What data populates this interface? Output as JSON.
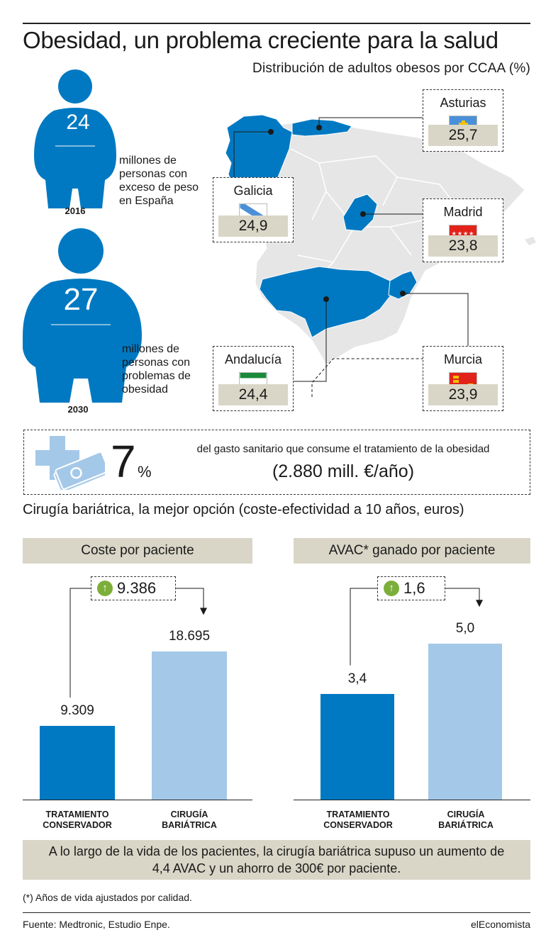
{
  "title": "Obesidad, un problema creciente para la salud",
  "map_subtitle": "Distribución de adultos obesos por CCAA (%)",
  "figures": [
    {
      "number": "24",
      "year": "2016",
      "text": [
        "millones de",
        "personas con",
        "exceso de peso",
        "en España"
      ]
    },
    {
      "number": "27",
      "year": "2030",
      "text": [
        "millones de",
        "personas con",
        "problemas de",
        "obesidad"
      ]
    }
  ],
  "regions": {
    "asturias": {
      "name": "Asturias",
      "value": "25,7"
    },
    "galicia": {
      "name": "Galicia",
      "value": "24,9"
    },
    "madrid": {
      "name": "Madrid",
      "value": "23,8"
    },
    "andalucia": {
      "name": "Andalucía",
      "value": "24,4"
    },
    "murcia": {
      "name": "Murcia",
      "value": "23,9"
    }
  },
  "stat": {
    "number": "7",
    "unit": "%",
    "line1": "del gasto sanitario que consume el tratamiento de la obesidad",
    "line2": "(2.880 mill. €/año)"
  },
  "section_title": "Cirugía bariátrica, la mejor opción (coste-efectividad a 10 años, euros)",
  "colors": {
    "dark_blue": "#0079c2",
    "light_blue": "#a4c8e8",
    "beige": "#d9d6c7",
    "map_grey": "#e6e6e6",
    "arrow_green": "#7cae3a"
  },
  "chart_data": [
    {
      "type": "bar",
      "title": "Coste por paciente",
      "categories": [
        "TRATAMIENTO CONSERVADOR",
        "CIRUGÍA BARIÁTRICA"
      ],
      "category_lines": [
        [
          "TRATAMIENTO",
          "CONSERVADOR"
        ],
        [
          "CIRUGÍA",
          "BARIÁTRICA"
        ]
      ],
      "values": [
        9309,
        18695
      ],
      "value_labels": [
        "9.309",
        "18.695"
      ],
      "difference_label": "9.386",
      "ylim": [
        0,
        26000
      ]
    },
    {
      "type": "bar",
      "title": "AVAC* ganado por paciente",
      "categories": [
        "TRATAMIENTO CONSERVADOR",
        "CIRUGÍA BARIÁTRICA"
      ],
      "category_lines": [
        [
          "TRATAMIENTO",
          "CONSERVADOR"
        ],
        [
          "CIRUGÍA",
          "BARIÁTRICA"
        ]
      ],
      "values": [
        3.4,
        5.0
      ],
      "value_labels": [
        "3,4",
        "5,0"
      ],
      "difference_label": "1,6",
      "ylim": [
        0,
        6.6
      ]
    }
  ],
  "bottom_note": [
    "A lo largo de la vida de los pacientes, la cirugía bariátrica supuso un aumento de",
    "4,4 AVAC y un ahorro de 300€ por paciente."
  ],
  "footnote": "(*) Años de vida ajustados por calidad.",
  "source": "Fuente: Medtronic, Estudio Enpe.",
  "brand": "elEconomista"
}
